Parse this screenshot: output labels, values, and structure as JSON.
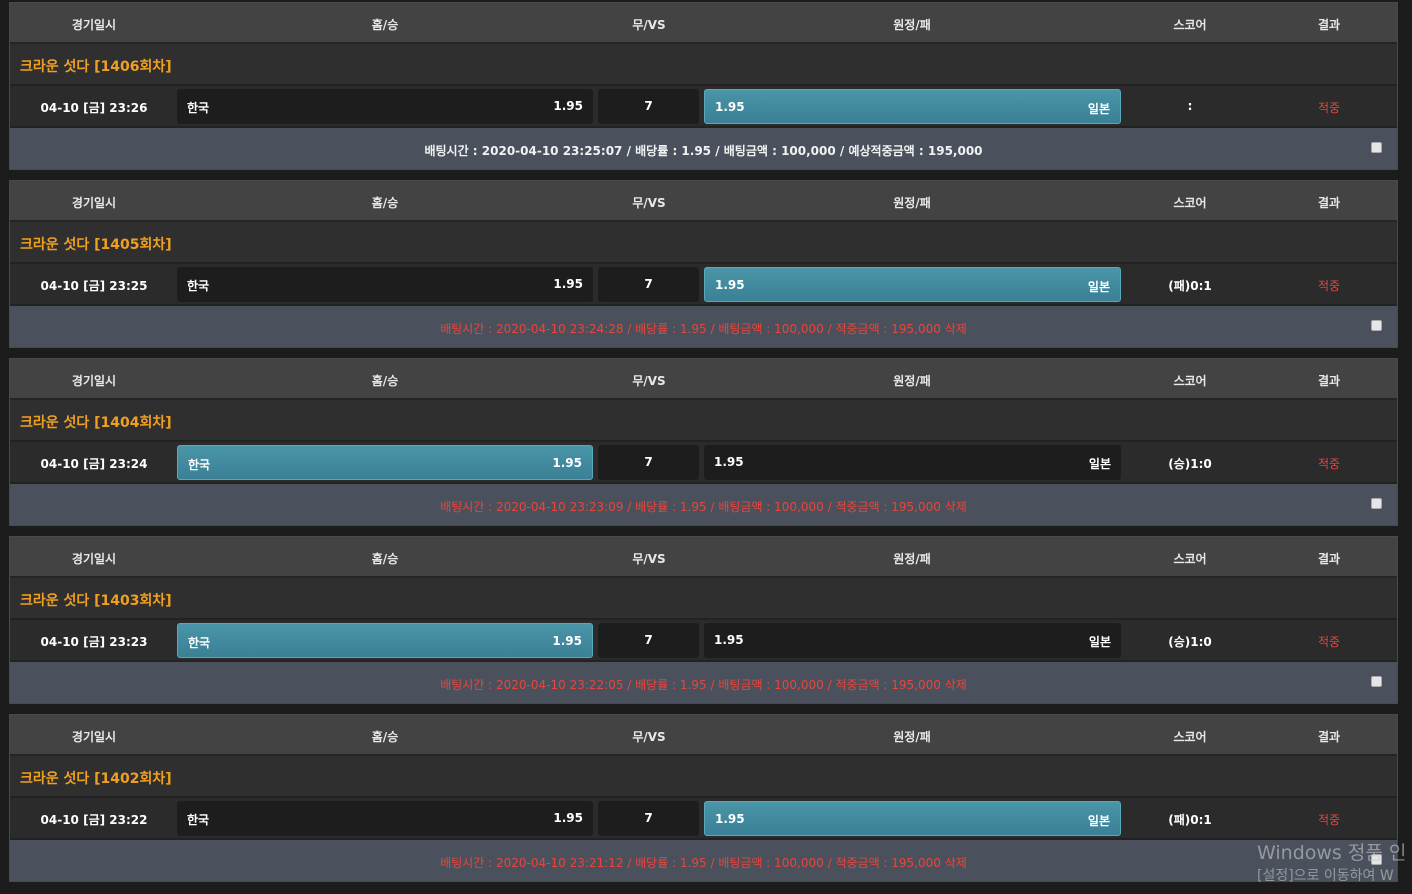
{
  "headers": {
    "date": "경기일시",
    "home": "홈/승",
    "draw": "무/VS",
    "away": "원정/패",
    "score": "스코어",
    "result": "결과"
  },
  "colors": {
    "accent_title": "#f0a020",
    "selected": "#3f8a9e",
    "result_red": "#e8453c"
  },
  "bets": [
    {
      "title": "크라운 섯다 [1406회차]",
      "date": "04-10 [금] 23:26",
      "home": "한국",
      "home_odds": "1.95",
      "draw": "7",
      "away_odds": "1.95",
      "away": "일본",
      "selected": "away",
      "score": ":",
      "result": "적중",
      "status": "open",
      "info": "배팅시간 : 2020-04-10 23:25:07  /  배당률 : 1.95  /  배팅금액 : 100,000  /  예상적중금액 : 195,000"
    },
    {
      "title": "크라운 섯다 [1405회차]",
      "date": "04-10 [금] 23:25",
      "home": "한국",
      "home_odds": "1.95",
      "draw": "7",
      "away_odds": "1.95",
      "away": "일본",
      "selected": "away",
      "score": "(패)0:1",
      "result": "적중",
      "status": "done",
      "info": "배팅시간 : 2020-04-10 23:24:28  /  배당률 : 1.95  /  배팅금액 : 100,000  /  적중금액 : 195,000 삭제"
    },
    {
      "title": "크라운 섯다 [1404회차]",
      "date": "04-10 [금] 23:24",
      "home": "한국",
      "home_odds": "1.95",
      "draw": "7",
      "away_odds": "1.95",
      "away": "일본",
      "selected": "home",
      "score": "(승)1:0",
      "result": "적중",
      "status": "done",
      "info": "배팅시간 : 2020-04-10 23:23:09  /  배당률 : 1.95  /  배팅금액 : 100,000  /  적중금액 : 195,000 삭제"
    },
    {
      "title": "크라운 섯다 [1403회차]",
      "date": "04-10 [금] 23:23",
      "home": "한국",
      "home_odds": "1.95",
      "draw": "7",
      "away_odds": "1.95",
      "away": "일본",
      "selected": "home",
      "score": "(승)1:0",
      "result": "적중",
      "status": "done",
      "info": "배팅시간 : 2020-04-10 23:22:05  /  배당률 : 1.95  /  배팅금액 : 100,000  /  적중금액 : 195,000 삭제"
    },
    {
      "title": "크라운 섯다 [1402회차]",
      "date": "04-10 [금] 23:22",
      "home": "한국",
      "home_odds": "1.95",
      "draw": "7",
      "away_odds": "1.95",
      "away": "일본",
      "selected": "away",
      "score": "(패)0:1",
      "result": "적중",
      "status": "done",
      "info": "배팅시간 : 2020-04-10 23:21:12  /  배당률 : 1.95  /  배팅금액 : 100,000  /  적중금액 : 195,000 삭제"
    }
  ],
  "watermark": {
    "line1": "Windows 정품 인",
    "line2": "[설정]으로 이동하여 W"
  }
}
